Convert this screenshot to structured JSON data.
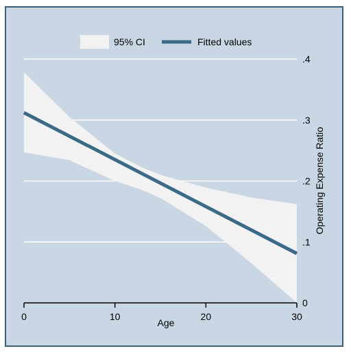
{
  "chart_data": {
    "type": "line",
    "xlabel": "Age",
    "ylabel": "Operating Expense Ratio",
    "xlim": [
      0,
      30
    ],
    "ylim": [
      0,
      0.4
    ],
    "x_ticks": [
      0,
      10,
      20,
      30
    ],
    "x_tick_labels": [
      "0",
      "10",
      "20",
      "30"
    ],
    "y_ticks": [
      0,
      0.1,
      0.2,
      0.3,
      0.4
    ],
    "y_tick_labels": [
      "0",
      ".1",
      ".2",
      ".3",
      ".4"
    ],
    "y_axis_side": "right",
    "grid": true,
    "legend": {
      "placement": "top",
      "entries": [
        {
          "label": "95% CI",
          "kind": "area",
          "color": "#f2f2f2"
        },
        {
          "label": "Fitted values",
          "kind": "line",
          "color": "#3a6a88"
        }
      ]
    },
    "series": [
      {
        "name": "Fitted values",
        "type": "line",
        "color": "#3a6a88",
        "x": [
          0,
          30
        ],
        "y": [
          0.312,
          0.081
        ]
      },
      {
        "name": "95% CI",
        "type": "area",
        "color": "#f2f2f2",
        "x": [
          0,
          5,
          10,
          13,
          15,
          20,
          25,
          30
        ],
        "upper": [
          0.378,
          0.305,
          0.245,
          0.222,
          0.21,
          0.189,
          0.173,
          0.162
        ],
        "lower": [
          0.247,
          0.234,
          0.2,
          0.185,
          0.172,
          0.126,
          0.065,
          0.0
        ]
      }
    ],
    "colors": {
      "background": "#c9d6e3",
      "gridline": "#ffffff",
      "frame": "#3d5f7a"
    }
  }
}
